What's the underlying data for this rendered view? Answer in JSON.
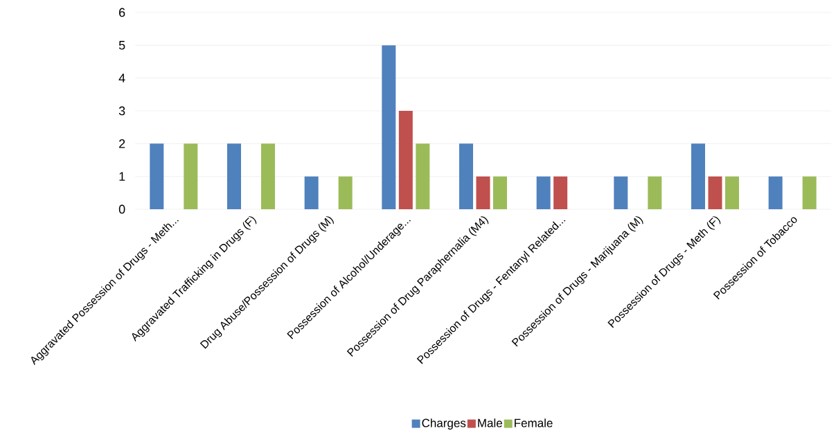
{
  "chart_data": {
    "type": "bar",
    "categories": [
      "Aggravated Possession of Drugs - Meth...",
      "Aggravated Trafficking in Drugs (F)",
      "Drug Abuse/Possession of Drugs (M)",
      "Possession of Alcohol/Underage...",
      "Possession of Drug Paraphernalia (M4)",
      "Possession of Drugs - Fentanyl Related...",
      "Possession of Drugs - Marijuana (M)",
      "Possession of Drugs - Meth (F)",
      "Possession of Tobacco"
    ],
    "series": [
      {
        "name": "Charges",
        "color": "#4f81bd",
        "values": [
          2,
          2,
          1,
          5,
          2,
          1,
          1,
          2,
          1
        ]
      },
      {
        "name": "Male",
        "color": "#c0504d",
        "values": [
          0,
          0,
          0,
          3,
          1,
          1,
          0,
          1,
          0
        ]
      },
      {
        "name": "Female",
        "color": "#9bbb59",
        "values": [
          2,
          2,
          1,
          2,
          1,
          0,
          1,
          1,
          1
        ]
      }
    ],
    "ylim": [
      0,
      6
    ],
    "yticks": [
      0,
      1,
      2,
      3,
      4,
      5,
      6
    ],
    "grid": "y",
    "legend": "bottom"
  }
}
